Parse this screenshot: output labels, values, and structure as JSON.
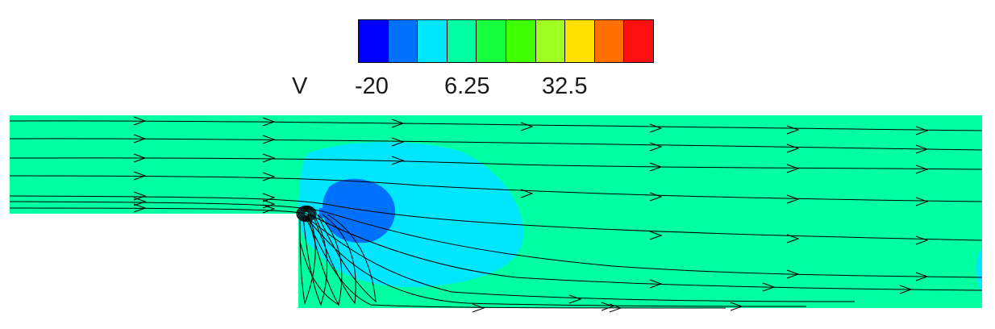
{
  "legend": {
    "variable": "V",
    "tick_labels": [
      "-20",
      "6.25",
      "32.5"
    ],
    "colors": [
      "#0000ff",
      "#0070ff",
      "#00e6ff",
      "#00ffa0",
      "#18ff40",
      "#40ff00",
      "#a0ff20",
      "#ffe000",
      "#ff7000",
      "#ff1010"
    ]
  },
  "field": {
    "background_color": "#00ffa0",
    "outer_blue_color": "#00e6ff",
    "inner_blue_color": "#0070ff",
    "streamline_color": "#000000"
  }
}
